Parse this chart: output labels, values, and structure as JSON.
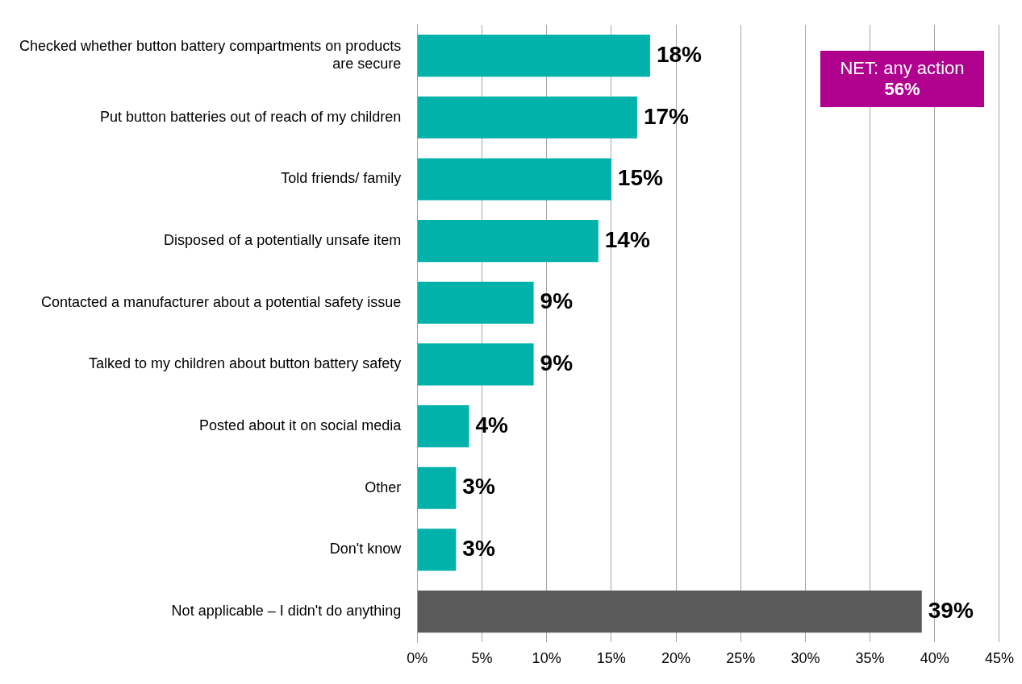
{
  "chart_data": {
    "type": "bar",
    "orientation": "horizontal",
    "categories": [
      "Checked whether button battery compartments on products are secure",
      "Put button batteries out of reach of my children",
      "Told friends/ family",
      "Disposed of a potentially unsafe item",
      "Contacted a manufacturer about a potential safety issue",
      "Talked to my children about button battery safety",
      "Posted about it on social media",
      "Other",
      "Don't know",
      "Not applicable – I didn't do anything"
    ],
    "values": [
      18,
      17,
      15,
      14,
      9,
      9,
      4,
      3,
      3,
      39
    ],
    "value_labels": [
      "18%",
      "17%",
      "15%",
      "14%",
      "9%",
      "9%",
      "4%",
      "3%",
      "3%",
      "39%"
    ],
    "colors": [
      "#00b2a9",
      "#00b2a9",
      "#00b2a9",
      "#00b2a9",
      "#00b2a9",
      "#00b2a9",
      "#00b2a9",
      "#00b2a9",
      "#00b2a9",
      "#5a5a5a"
    ],
    "xlim": [
      0,
      45
    ],
    "xticks": [
      {
        "value": 0,
        "label": "0%"
      },
      {
        "value": 5,
        "label": "5%"
      },
      {
        "value": 10,
        "label": "10%"
      },
      {
        "value": 15,
        "label": "15%"
      },
      {
        "value": 20,
        "label": "20%"
      },
      {
        "value": 25,
        "label": "25%"
      },
      {
        "value": 30,
        "label": "30%"
      },
      {
        "value": 35,
        "label": "35%"
      },
      {
        "value": 40,
        "label": "40%"
      },
      {
        "value": 45,
        "label": "45%"
      }
    ],
    "grid": "x",
    "legend": false,
    "annotations": [
      "NET: any action\n56%"
    ]
  }
}
